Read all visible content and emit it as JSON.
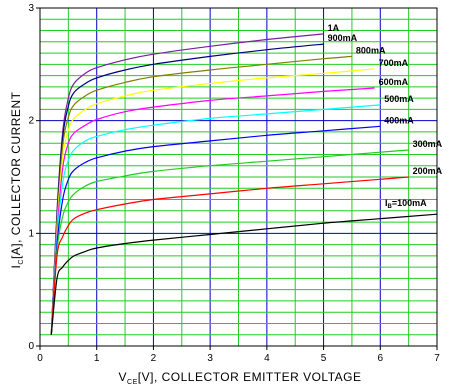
{
  "chart_data": {
    "type": "line",
    "title": "",
    "xlabel": {
      "prefix": "V",
      "sub": "CE",
      "rest": "[V], COLLECTOR EMITTER VOLTAGE"
    },
    "ylabel": {
      "prefix": "I",
      "sub": "C",
      "rest": "[A], COLLECTOR CURRENT"
    },
    "xlim": [
      0,
      7
    ],
    "ylim": [
      0,
      3
    ],
    "xticks": [
      "0",
      "1",
      "2",
      "3",
      "4",
      "5",
      "6",
      "7"
    ],
    "yticks": [
      "0",
      "1",
      "2",
      "3"
    ],
    "grid": {
      "major_color": "#0000cc",
      "minor_color": "#22cc22"
    },
    "series": [
      {
        "name": "1A",
        "color": "#7b1fa2",
        "x": [
          0.2,
          0.3,
          0.4,
          0.5,
          0.6,
          0.8,
          1.0,
          1.5,
          2.0,
          3.0,
          4.0,
          5.0
        ],
        "y": [
          0.1,
          1.2,
          1.9,
          2.2,
          2.33,
          2.42,
          2.47,
          2.54,
          2.59,
          2.66,
          2.72,
          2.77
        ]
      },
      {
        "name": "900mA",
        "color": "#000080",
        "x": [
          0.2,
          0.3,
          0.4,
          0.5,
          0.6,
          0.8,
          1.0,
          1.5,
          2.0,
          3.0,
          4.0,
          5.0
        ],
        "y": [
          0.1,
          1.15,
          1.85,
          2.13,
          2.25,
          2.33,
          2.38,
          2.45,
          2.5,
          2.57,
          2.63,
          2.68
        ]
      },
      {
        "name": "800mA",
        "color": "#808000",
        "x": [
          0.2,
          0.3,
          0.4,
          0.5,
          0.6,
          0.8,
          1.0,
          1.5,
          2.0,
          3.0,
          4.0,
          5.0,
          5.5
        ],
        "y": [
          0.1,
          1.1,
          1.78,
          2.03,
          2.14,
          2.22,
          2.27,
          2.34,
          2.39,
          2.45,
          2.5,
          2.55,
          2.57
        ]
      },
      {
        "name": "700mA",
        "color": "#ffff00",
        "x": [
          0.2,
          0.3,
          0.4,
          0.5,
          0.6,
          0.8,
          1.0,
          1.5,
          2.0,
          3.0,
          4.0,
          5.0,
          5.9
        ],
        "y": [
          0.1,
          1.05,
          1.68,
          1.92,
          2.02,
          2.1,
          2.15,
          2.22,
          2.27,
          2.33,
          2.38,
          2.42,
          2.46
        ]
      },
      {
        "name": "600mA",
        "color": "#ff00ff",
        "x": [
          0.2,
          0.3,
          0.4,
          0.5,
          0.6,
          0.8,
          1.0,
          1.5,
          2.0,
          3.0,
          4.0,
          5.0,
          5.9
        ],
        "y": [
          0.1,
          1.0,
          1.58,
          1.8,
          1.89,
          1.96,
          2.01,
          2.08,
          2.12,
          2.18,
          2.22,
          2.26,
          2.29
        ]
      },
      {
        "name": "500mA",
        "color": "#00ffff",
        "x": [
          0.2,
          0.3,
          0.4,
          0.5,
          0.6,
          0.8,
          1.0,
          1.5,
          2.0,
          3.0,
          4.0,
          5.0,
          6.0
        ],
        "y": [
          0.1,
          0.95,
          1.45,
          1.65,
          1.74,
          1.82,
          1.86,
          1.92,
          1.96,
          2.02,
          2.06,
          2.1,
          2.14
        ]
      },
      {
        "name": "400mA",
        "color": "#0000ff",
        "x": [
          0.2,
          0.3,
          0.4,
          0.5,
          0.6,
          0.8,
          1.0,
          1.5,
          2.0,
          3.0,
          4.0,
          5.0,
          6.0
        ],
        "y": [
          0.1,
          0.9,
          1.3,
          1.48,
          1.56,
          1.63,
          1.67,
          1.73,
          1.77,
          1.82,
          1.87,
          1.91,
          1.95
        ]
      },
      {
        "name": "300mA",
        "color": "#22cc22",
        "x": [
          0.2,
          0.3,
          0.4,
          0.5,
          0.6,
          0.8,
          1.0,
          1.5,
          2.0,
          3.0,
          4.0,
          5.0,
          6.0,
          6.5
        ],
        "y": [
          0.1,
          0.85,
          1.15,
          1.28,
          1.35,
          1.42,
          1.46,
          1.51,
          1.55,
          1.6,
          1.64,
          1.68,
          1.72,
          1.74
        ]
      },
      {
        "name": "200mA",
        "color": "#ff0000",
        "x": [
          0.2,
          0.3,
          0.4,
          0.5,
          0.6,
          0.8,
          1.0,
          1.5,
          2.0,
          3.0,
          4.0,
          5.0,
          6.0,
          6.5
        ],
        "y": [
          0.1,
          0.8,
          0.97,
          1.07,
          1.13,
          1.18,
          1.21,
          1.26,
          1.3,
          1.35,
          1.4,
          1.44,
          1.48,
          1.5
        ]
      },
      {
        "name": "I_B=100mA",
        "color": "#000000",
        "x": [
          0.2,
          0.3,
          0.4,
          0.5,
          0.6,
          0.8,
          1.0,
          1.5,
          2.0,
          3.0,
          4.0,
          5.0,
          6.0,
          7.0
        ],
        "y": [
          0.1,
          0.6,
          0.7,
          0.76,
          0.8,
          0.84,
          0.87,
          0.91,
          0.94,
          0.99,
          1.04,
          1.09,
          1.13,
          1.17
        ]
      }
    ],
    "curve_labels": [
      {
        "text": "1A"
      },
      {
        "text": "900mA"
      },
      {
        "text": "800mA"
      },
      {
        "text": "700mA"
      },
      {
        "text": "600mA"
      },
      {
        "text": "500mA"
      },
      {
        "text": "400mA"
      },
      {
        "text": "300mA"
      },
      {
        "text": "200mA"
      },
      {
        "prefix": "I",
        "sub": "B",
        "rest": "=100mA"
      }
    ]
  }
}
